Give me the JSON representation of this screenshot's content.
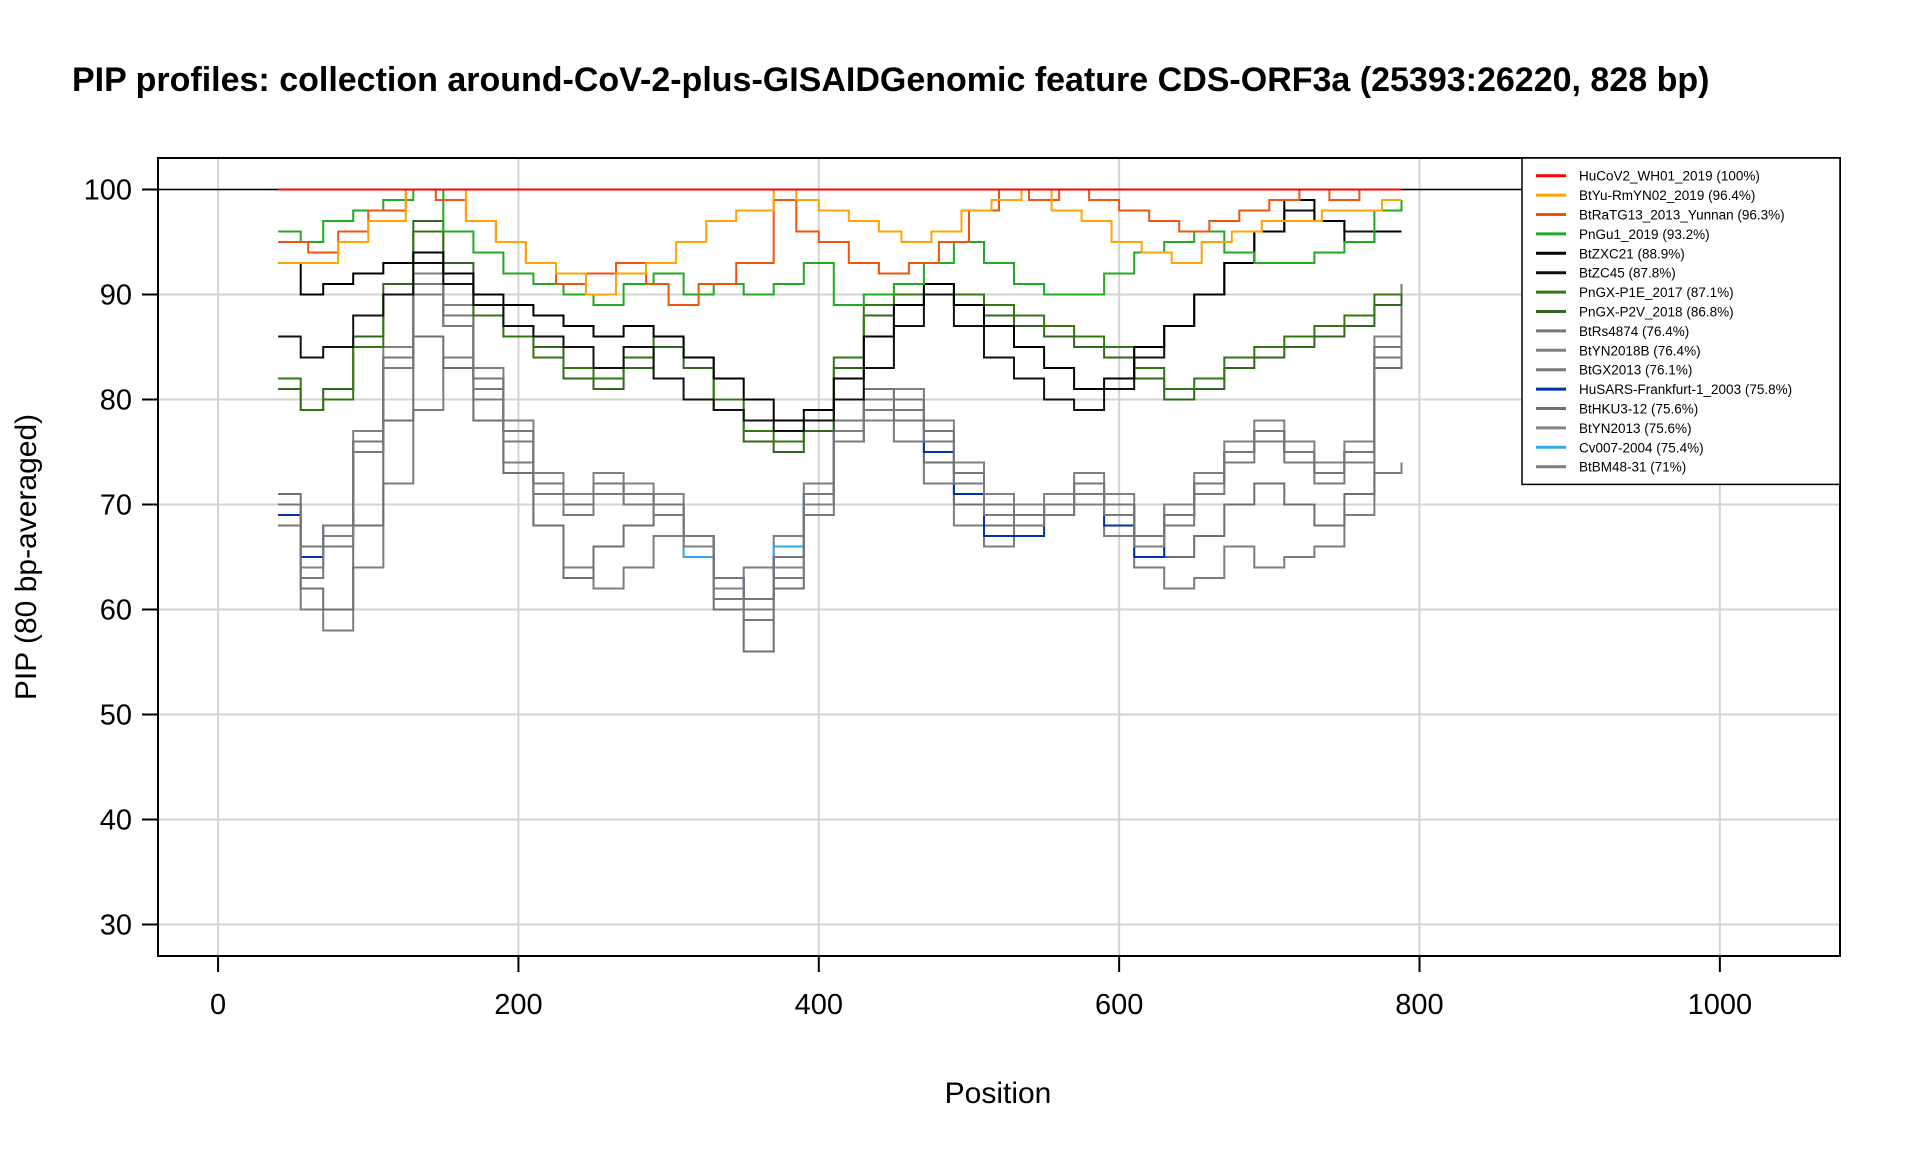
{
  "chart_data": {
    "type": "line",
    "title": "PIP profiles: collection around-CoV-2-plus-GISAIDGenomic feature CDS-ORF3a (25393:26220, 828 bp)",
    "xlabel": "Position",
    "ylabel": "PIP (80 bp-averaged)",
    "xlim": [
      -40,
      1080
    ],
    "ylim": [
      27,
      103
    ],
    "xticks": [
      "0",
      "200",
      "400",
      "600",
      "800",
      "1000"
    ],
    "yticks": [
      "30",
      "40",
      "50",
      "60",
      "70",
      "80",
      "90",
      "100"
    ],
    "grid": true,
    "reference_line": 100,
    "legend_position": "top-right",
    "series": [
      {
        "name": "HuCoV2_WH01_2019 (100%)",
        "color": "#ff0000",
        "x": [
          40,
          120,
          200,
          300,
          400,
          500,
          600,
          700,
          788
        ],
        "y": [
          100,
          100,
          100,
          100,
          100,
          100,
          100,
          100,
          100
        ]
      },
      {
        "name": "BtYu-RmYN02_2019 (96.4%)",
        "color": "#ffa500",
        "x": [
          40,
          60,
          80,
          100,
          125,
          145,
          165,
          185,
          205,
          225,
          245,
          265,
          285,
          305,
          325,
          345,
          370,
          385,
          400,
          420,
          440,
          455,
          475,
          495,
          515,
          535,
          555,
          575,
          595,
          615,
          635,
          655,
          675,
          695,
          715,
          735,
          755,
          775,
          788
        ],
        "y": [
          93,
          93,
          95,
          97,
          100,
          100,
          97,
          95,
          93,
          92,
          90,
          92,
          93,
          95,
          97,
          98,
          100,
          99,
          98,
          97,
          96,
          95,
          96,
          98,
          99,
          100,
          98,
          97,
          95,
          94,
          93,
          95,
          96,
          97,
          97,
          98,
          98,
          99,
          99
        ]
      },
      {
        "name": "BtRaTG13_2013_Yunnan (96.3%)",
        "color": "#ee5511",
        "x": [
          40,
          60,
          80,
          100,
          125,
          145,
          165,
          185,
          205,
          225,
          245,
          265,
          285,
          300,
          320,
          345,
          370,
          385,
          400,
          420,
          440,
          460,
          480,
          500,
          520,
          540,
          560,
          580,
          600,
          620,
          640,
          660,
          680,
          700,
          720,
          740,
          760,
          788
        ],
        "y": [
          95,
          94,
          96,
          98,
          100,
          99,
          97,
          95,
          93,
          91,
          92,
          93,
          91,
          89,
          91,
          93,
          99,
          96,
          95,
          93,
          92,
          93,
          95,
          98,
          100,
          99,
          100,
          99,
          98,
          97,
          96,
          97,
          98,
          99,
          100,
          99,
          100,
          100
        ]
      },
      {
        "name": "PnGu1_2019 (93.2%)",
        "color": "#22aa22",
        "x": [
          40,
          55,
          70,
          90,
          110,
          130,
          150,
          170,
          190,
          210,
          230,
          250,
          270,
          290,
          310,
          330,
          350,
          370,
          390,
          410,
          430,
          450,
          470,
          490,
          510,
          530,
          550,
          570,
          590,
          610,
          630,
          650,
          670,
          690,
          710,
          730,
          750,
          770,
          788
        ],
        "y": [
          96,
          95,
          97,
          98,
          99,
          100,
          96,
          94,
          92,
          91,
          90,
          89,
          91,
          92,
          90,
          91,
          90,
          91,
          93,
          89,
          90,
          91,
          93,
          95,
          93,
          91,
          90,
          90,
          92,
          94,
          95,
          96,
          94,
          93,
          93,
          94,
          95,
          98,
          99
        ]
      },
      {
        "name": "BtZXC21 (88.9%)",
        "color": "#000000",
        "x": [
          40,
          55,
          70,
          90,
          110,
          130,
          150,
          170,
          190,
          210,
          230,
          250,
          270,
          290,
          310,
          330,
          350,
          370,
          390,
          410,
          430,
          450,
          470,
          490,
          510,
          530,
          550,
          570,
          590,
          610,
          630,
          650,
          670,
          690,
          710,
          730,
          750,
          770,
          788
        ],
        "y": [
          93,
          90,
          91,
          92,
          93,
          94,
          92,
          90,
          89,
          88,
          87,
          86,
          87,
          86,
          84,
          82,
          80,
          78,
          79,
          82,
          86,
          89,
          91,
          89,
          87,
          85,
          83,
          81,
          82,
          85,
          87,
          90,
          93,
          96,
          99,
          97,
          95,
          96,
          96
        ]
      },
      {
        "name": "BtZC45 (87.8%)",
        "color": "#111111",
        "x": [
          40,
          55,
          70,
          90,
          110,
          130,
          150,
          170,
          190,
          210,
          230,
          250,
          270,
          290,
          310,
          330,
          350,
          370,
          390,
          410,
          430,
          450,
          470,
          490,
          510,
          530,
          550,
          570,
          590,
          610,
          630,
          650,
          670,
          690,
          710,
          730,
          750,
          770,
          788
        ],
        "y": [
          86,
          84,
          85,
          88,
          90,
          93,
          91,
          89,
          87,
          86,
          85,
          83,
          85,
          82,
          80,
          79,
          78,
          77,
          78,
          80,
          83,
          87,
          90,
          87,
          84,
          82,
          80,
          79,
          81,
          84,
          87,
          90,
          93,
          96,
          98,
          97,
          96,
          96,
          96
        ]
      },
      {
        "name": "PnGX-P1E_2017 (87.1%)",
        "color": "#337711",
        "x": [
          40,
          55,
          70,
          90,
          110,
          130,
          150,
          170,
          190,
          210,
          230,
          250,
          270,
          290,
          310,
          330,
          350,
          370,
          390,
          410,
          430,
          450,
          470,
          490,
          510,
          530,
          550,
          570,
          590,
          610,
          630,
          650,
          670,
          690,
          710,
          730,
          750,
          770,
          788
        ],
        "y": [
          82,
          79,
          80,
          85,
          90,
          96,
          92,
          88,
          86,
          84,
          83,
          82,
          84,
          86,
          84,
          80,
          77,
          76,
          78,
          84,
          89,
          90,
          91,
          90,
          89,
          88,
          87,
          86,
          85,
          83,
          81,
          82,
          84,
          85,
          86,
          87,
          88,
          90,
          90
        ]
      },
      {
        "name": "PnGX-P2V_2018 (86.8%)",
        "color": "#336622",
        "x": [
          40,
          55,
          70,
          90,
          110,
          130,
          150,
          170,
          190,
          210,
          230,
          250,
          270,
          290,
          310,
          330,
          350,
          370,
          390,
          410,
          430,
          450,
          470,
          490,
          510,
          530,
          550,
          570,
          590,
          610,
          630,
          650,
          670,
          690,
          710,
          730,
          750,
          770,
          788
        ],
        "y": [
          81,
          79,
          81,
          86,
          91,
          97,
          93,
          89,
          87,
          85,
          82,
          81,
          83,
          85,
          83,
          79,
          76,
          75,
          77,
          83,
          88,
          89,
          90,
          89,
          88,
          87,
          86,
          85,
          84,
          82,
          80,
          81,
          83,
          84,
          85,
          86,
          87,
          89,
          90
        ]
      },
      {
        "name": "BtRs4874 (76.4%)",
        "color": "#777777",
        "x": [
          40,
          55,
          70,
          90,
          110,
          130,
          150,
          170,
          190,
          210,
          230,
          250,
          270,
          290,
          310,
          330,
          350,
          370,
          390,
          410,
          430,
          450,
          470,
          490,
          510,
          530,
          550,
          570,
          590,
          610,
          630,
          650,
          670,
          690,
          710,
          730,
          750,
          770,
          788
        ],
        "y": [
          70,
          66,
          68,
          76,
          84,
          91,
          88,
          82,
          77,
          72,
          70,
          72,
          71,
          70,
          67,
          63,
          61,
          65,
          71,
          78,
          81,
          80,
          77,
          73,
          70,
          69,
          70,
          72,
          70,
          67,
          69,
          72,
          75,
          77,
          75,
          73,
          75,
          85,
          91
        ]
      },
      {
        "name": "BtYN2018B (76.4%)",
        "color": "#808080",
        "x": [
          40,
          55,
          70,
          90,
          110,
          130,
          150,
          170,
          190,
          210,
          230,
          250,
          270,
          290,
          310,
          330,
          350,
          370,
          390,
          410,
          430,
          450,
          470,
          490,
          510,
          530,
          550,
          570,
          590,
          610,
          630,
          650,
          670,
          690,
          710,
          730,
          750,
          770,
          788
        ],
        "y": [
          70,
          64,
          67,
          77,
          85,
          92,
          89,
          83,
          78,
          73,
          71,
          73,
          72,
          71,
          66,
          62,
          60,
          64,
          70,
          77,
          80,
          81,
          78,
          74,
          71,
          70,
          71,
          73,
          71,
          66,
          70,
          73,
          76,
          78,
          76,
          74,
          76,
          86,
          91
        ]
      },
      {
        "name": "BtGX2013 (76.1%)",
        "color": "#7a7a7a",
        "x": [
          40,
          55,
          70,
          90,
          110,
          130,
          150,
          170,
          190,
          210,
          230,
          250,
          270,
          290,
          310,
          330,
          350,
          370,
          390,
          410,
          430,
          450,
          470,
          490,
          510,
          530,
          550,
          570,
          590,
          610,
          630,
          650,
          670,
          690,
          710,
          730,
          750,
          770,
          788
        ],
        "y": [
          68,
          63,
          66,
          75,
          83,
          90,
          87,
          81,
          76,
          71,
          69,
          71,
          70,
          69,
          66,
          61,
          59,
          63,
          69,
          76,
          79,
          79,
          76,
          72,
          69,
          68,
          69,
          71,
          69,
          66,
          68,
          71,
          74,
          76,
          74,
          72,
          74,
          84,
          90
        ]
      },
      {
        "name": "HuSARS-Frankfurt-1_2003 (75.8%)",
        "color": "#0033aa",
        "x": [
          40,
          55,
          70,
          90,
          110,
          130,
          150,
          170,
          190,
          210,
          230,
          250,
          270,
          290,
          310,
          330,
          350,
          370,
          390,
          410,
          430,
          450,
          470,
          490,
          510,
          530,
          550,
          570,
          590,
          610,
          630,
          650,
          670,
          690,
          710,
          730,
          750,
          770,
          788
        ],
        "y": [
          69,
          65,
          68,
          76,
          84,
          91,
          88,
          82,
          77,
          72,
          70,
          72,
          71,
          70,
          67,
          63,
          61,
          65,
          71,
          78,
          80,
          80,
          75,
          71,
          67,
          67,
          69,
          71,
          68,
          65,
          70,
          72,
          75,
          77,
          75,
          73,
          75,
          85,
          91
        ]
      },
      {
        "name": "BtHKU3-12 (75.6%)",
        "color": "#6f6f6f",
        "x": [
          40,
          55,
          70,
          90,
          110,
          130,
          150,
          170,
          190,
          210,
          230,
          250,
          270,
          290,
          310,
          330,
          350,
          370,
          390,
          410,
          430,
          450,
          470,
          490,
          510,
          530,
          550,
          570,
          590,
          610,
          630,
          650,
          670,
          690,
          710,
          730,
          750,
          770,
          788
        ],
        "y": [
          71,
          62,
          60,
          68,
          78,
          86,
          83,
          78,
          73,
          68,
          63,
          66,
          68,
          70,
          67,
          60,
          56,
          62,
          70,
          77,
          80,
          78,
          74,
          70,
          68,
          69,
          70,
          72,
          70,
          66,
          65,
          67,
          70,
          72,
          70,
          68,
          71,
          83,
          89
        ]
      },
      {
        "name": "BtYN2013 (75.6%)",
        "color": "#858585",
        "x": [
          40,
          55,
          70,
          90,
          110,
          130,
          150,
          170,
          190,
          210,
          230,
          250,
          270,
          290,
          310,
          330,
          350,
          370,
          390,
          410,
          430,
          450,
          470,
          490,
          510,
          530,
          550,
          570,
          590,
          610,
          630,
          650,
          670,
          690,
          710,
          730,
          750,
          770,
          788
        ],
        "y": [
          70,
          65,
          67,
          75,
          83,
          90,
          87,
          82,
          77,
          72,
          70,
          72,
          71,
          70,
          66,
          63,
          61,
          65,
          70,
          76,
          80,
          80,
          77,
          73,
          70,
          69,
          70,
          72,
          70,
          67,
          69,
          72,
          75,
          77,
          75,
          73,
          75,
          85,
          91
        ]
      },
      {
        "name": "Cv007-2004 (75.4%)",
        "color": "#33aaee",
        "x": [
          40,
          55,
          70,
          90,
          110,
          130,
          150,
          170,
          190,
          210,
          230,
          250,
          270,
          290,
          310,
          330,
          350,
          370,
          390,
          410,
          430,
          450,
          470,
          490,
          510,
          530,
          550,
          570,
          590,
          610,
          630,
          650,
          670,
          690,
          710,
          730,
          750,
          770,
          788
        ],
        "y": [
          69,
          64,
          67,
          75,
          83,
          90,
          87,
          81,
          76,
          71,
          69,
          71,
          70,
          69,
          65,
          62,
          60,
          66,
          71,
          77,
          80,
          81,
          77,
          73,
          70,
          69,
          70,
          72,
          70,
          67,
          69,
          72,
          75,
          77,
          75,
          73,
          75,
          85,
          91
        ]
      },
      {
        "name": "BtBM48-31 (71%)",
        "color": "#7d7d7d",
        "x": [
          40,
          55,
          70,
          90,
          110,
          130,
          150,
          170,
          190,
          210,
          230,
          250,
          270,
          290,
          310,
          330,
          350,
          370,
          390,
          410,
          430,
          450,
          470,
          490,
          510,
          530,
          550,
          570,
          590,
          610,
          630,
          650,
          670,
          690,
          710,
          730,
          750,
          770,
          788
        ],
        "y": [
          68,
          60,
          58,
          64,
          72,
          79,
          84,
          80,
          74,
          68,
          64,
          62,
          64,
          67,
          65,
          62,
          64,
          67,
          72,
          76,
          78,
          76,
          72,
          68,
          66,
          68,
          70,
          70,
          67,
          64,
          62,
          63,
          66,
          64,
          65,
          66,
          69,
          73,
          74
        ]
      }
    ]
  }
}
